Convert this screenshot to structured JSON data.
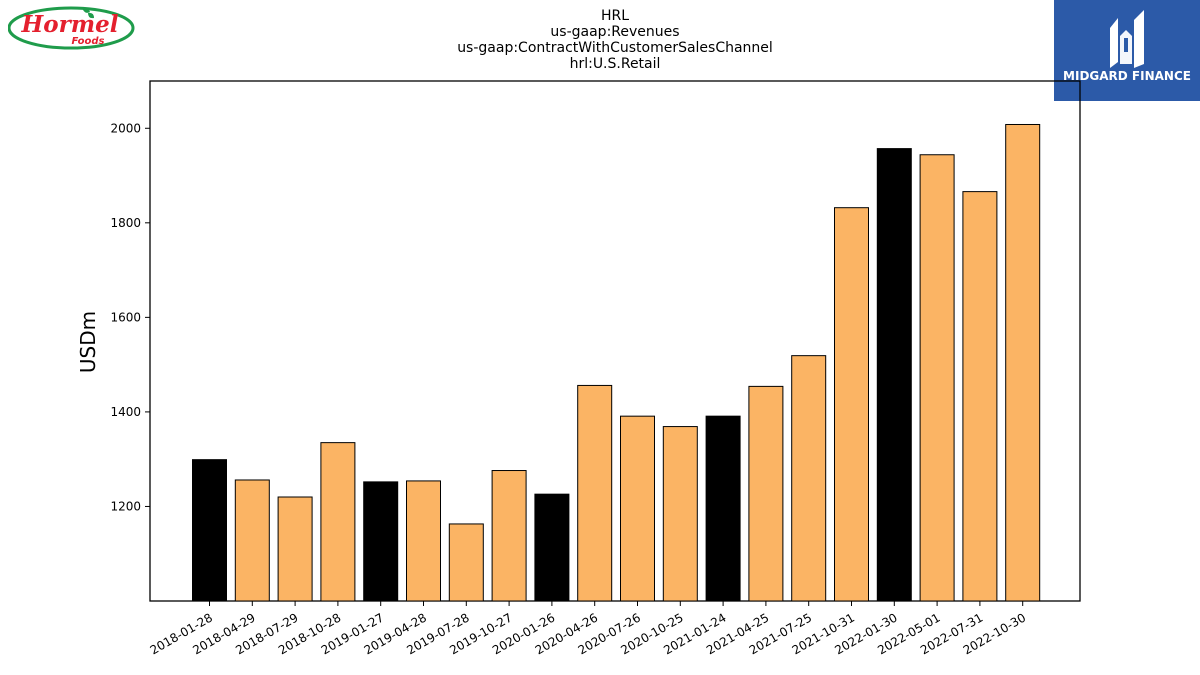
{
  "header": {
    "title_lines": [
      "HRL",
      "us-gaap:Revenues",
      "us-gaap:ContractWithCustomerSalesChannel",
      "hrl:U.S.Retail"
    ]
  },
  "logos": {
    "left": {
      "text": "Hormel Foods",
      "colors": {
        "ring": "#1f9c4b",
        "text": "#e4202e",
        "leaf": "#1f9c4b"
      }
    },
    "right": {
      "text": "MIDGARD FINANCE",
      "colors": {
        "background": "#2c5aa8",
        "text": "#ffffff"
      }
    }
  },
  "chart_data": {
    "type": "bar",
    "title": "HRL\nus-gaap:Revenues\nus-gaap:ContractWithCustomerSalesChannel\nhrl:U.S.Retail",
    "xlabel": "",
    "ylabel": "USDm",
    "ylim": [
      1000,
      2100
    ],
    "yticks": [
      1200,
      1400,
      1600,
      1800,
      2000
    ],
    "grid": false,
    "legend": "none",
    "colors": {
      "q1": "#000000",
      "other": "#fbb464",
      "edge": "#000000"
    },
    "categories": [
      "2018-01-28",
      "2018-04-29",
      "2018-07-29",
      "2018-10-28",
      "2019-01-27",
      "2019-04-28",
      "2019-07-28",
      "2019-10-27",
      "2020-01-26",
      "2020-04-26",
      "2020-07-26",
      "2020-10-25",
      "2021-01-24",
      "2021-04-25",
      "2021-07-25",
      "2021-10-31",
      "2022-01-30",
      "2022-05-01",
      "2022-07-31",
      "2022-10-30"
    ],
    "values": [
      1299,
      1256,
      1220,
      1335,
      1252,
      1254,
      1163,
      1276,
      1226,
      1456,
      1391,
      1369,
      1391,
      1454,
      1519,
      1832,
      1957,
      1944,
      1866,
      2008
    ],
    "highlighted": [
      true,
      false,
      false,
      false,
      true,
      false,
      false,
      false,
      true,
      false,
      false,
      false,
      true,
      false,
      false,
      false,
      true,
      false,
      false,
      false
    ]
  }
}
